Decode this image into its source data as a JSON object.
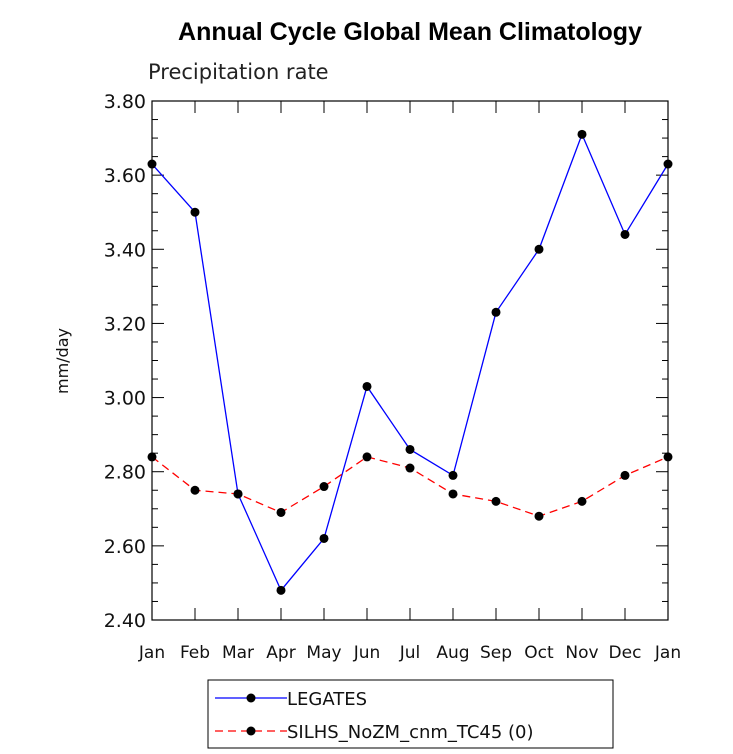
{
  "chart_data": {
    "type": "line",
    "title": "Annual Cycle Global Mean Climatology",
    "subtitle": "Precipitation rate",
    "xlabel": "",
    "ylabel": "mm/day",
    "ylim": [
      2.4,
      3.8
    ],
    "yticks": [
      "2.40",
      "2.60",
      "2.80",
      "3.00",
      "3.20",
      "3.40",
      "3.60",
      "3.80"
    ],
    "categories": [
      "Jan",
      "Feb",
      "Mar",
      "Apr",
      "May",
      "Jun",
      "Jul",
      "Aug",
      "Sep",
      "Oct",
      "Nov",
      "Dec",
      "Jan"
    ],
    "grid": false,
    "legend_position": "bottom",
    "series": [
      {
        "name": "LEGATES",
        "color": "#0000ff",
        "line_style": "solid",
        "marker": "filled-circle",
        "values": [
          3.63,
          3.5,
          2.74,
          2.48,
          2.62,
          3.03,
          2.86,
          2.79,
          3.23,
          3.4,
          3.71,
          3.44,
          3.63
        ]
      },
      {
        "name": "SILHS_NoZM_cnm_TC45 (0)",
        "color": "#ff0000",
        "line_style": "dashed",
        "marker": "filled-circle",
        "values": [
          2.84,
          2.75,
          2.74,
          2.69,
          2.76,
          2.84,
          2.81,
          2.74,
          2.72,
          2.68,
          2.72,
          2.79,
          2.84
        ]
      }
    ]
  }
}
